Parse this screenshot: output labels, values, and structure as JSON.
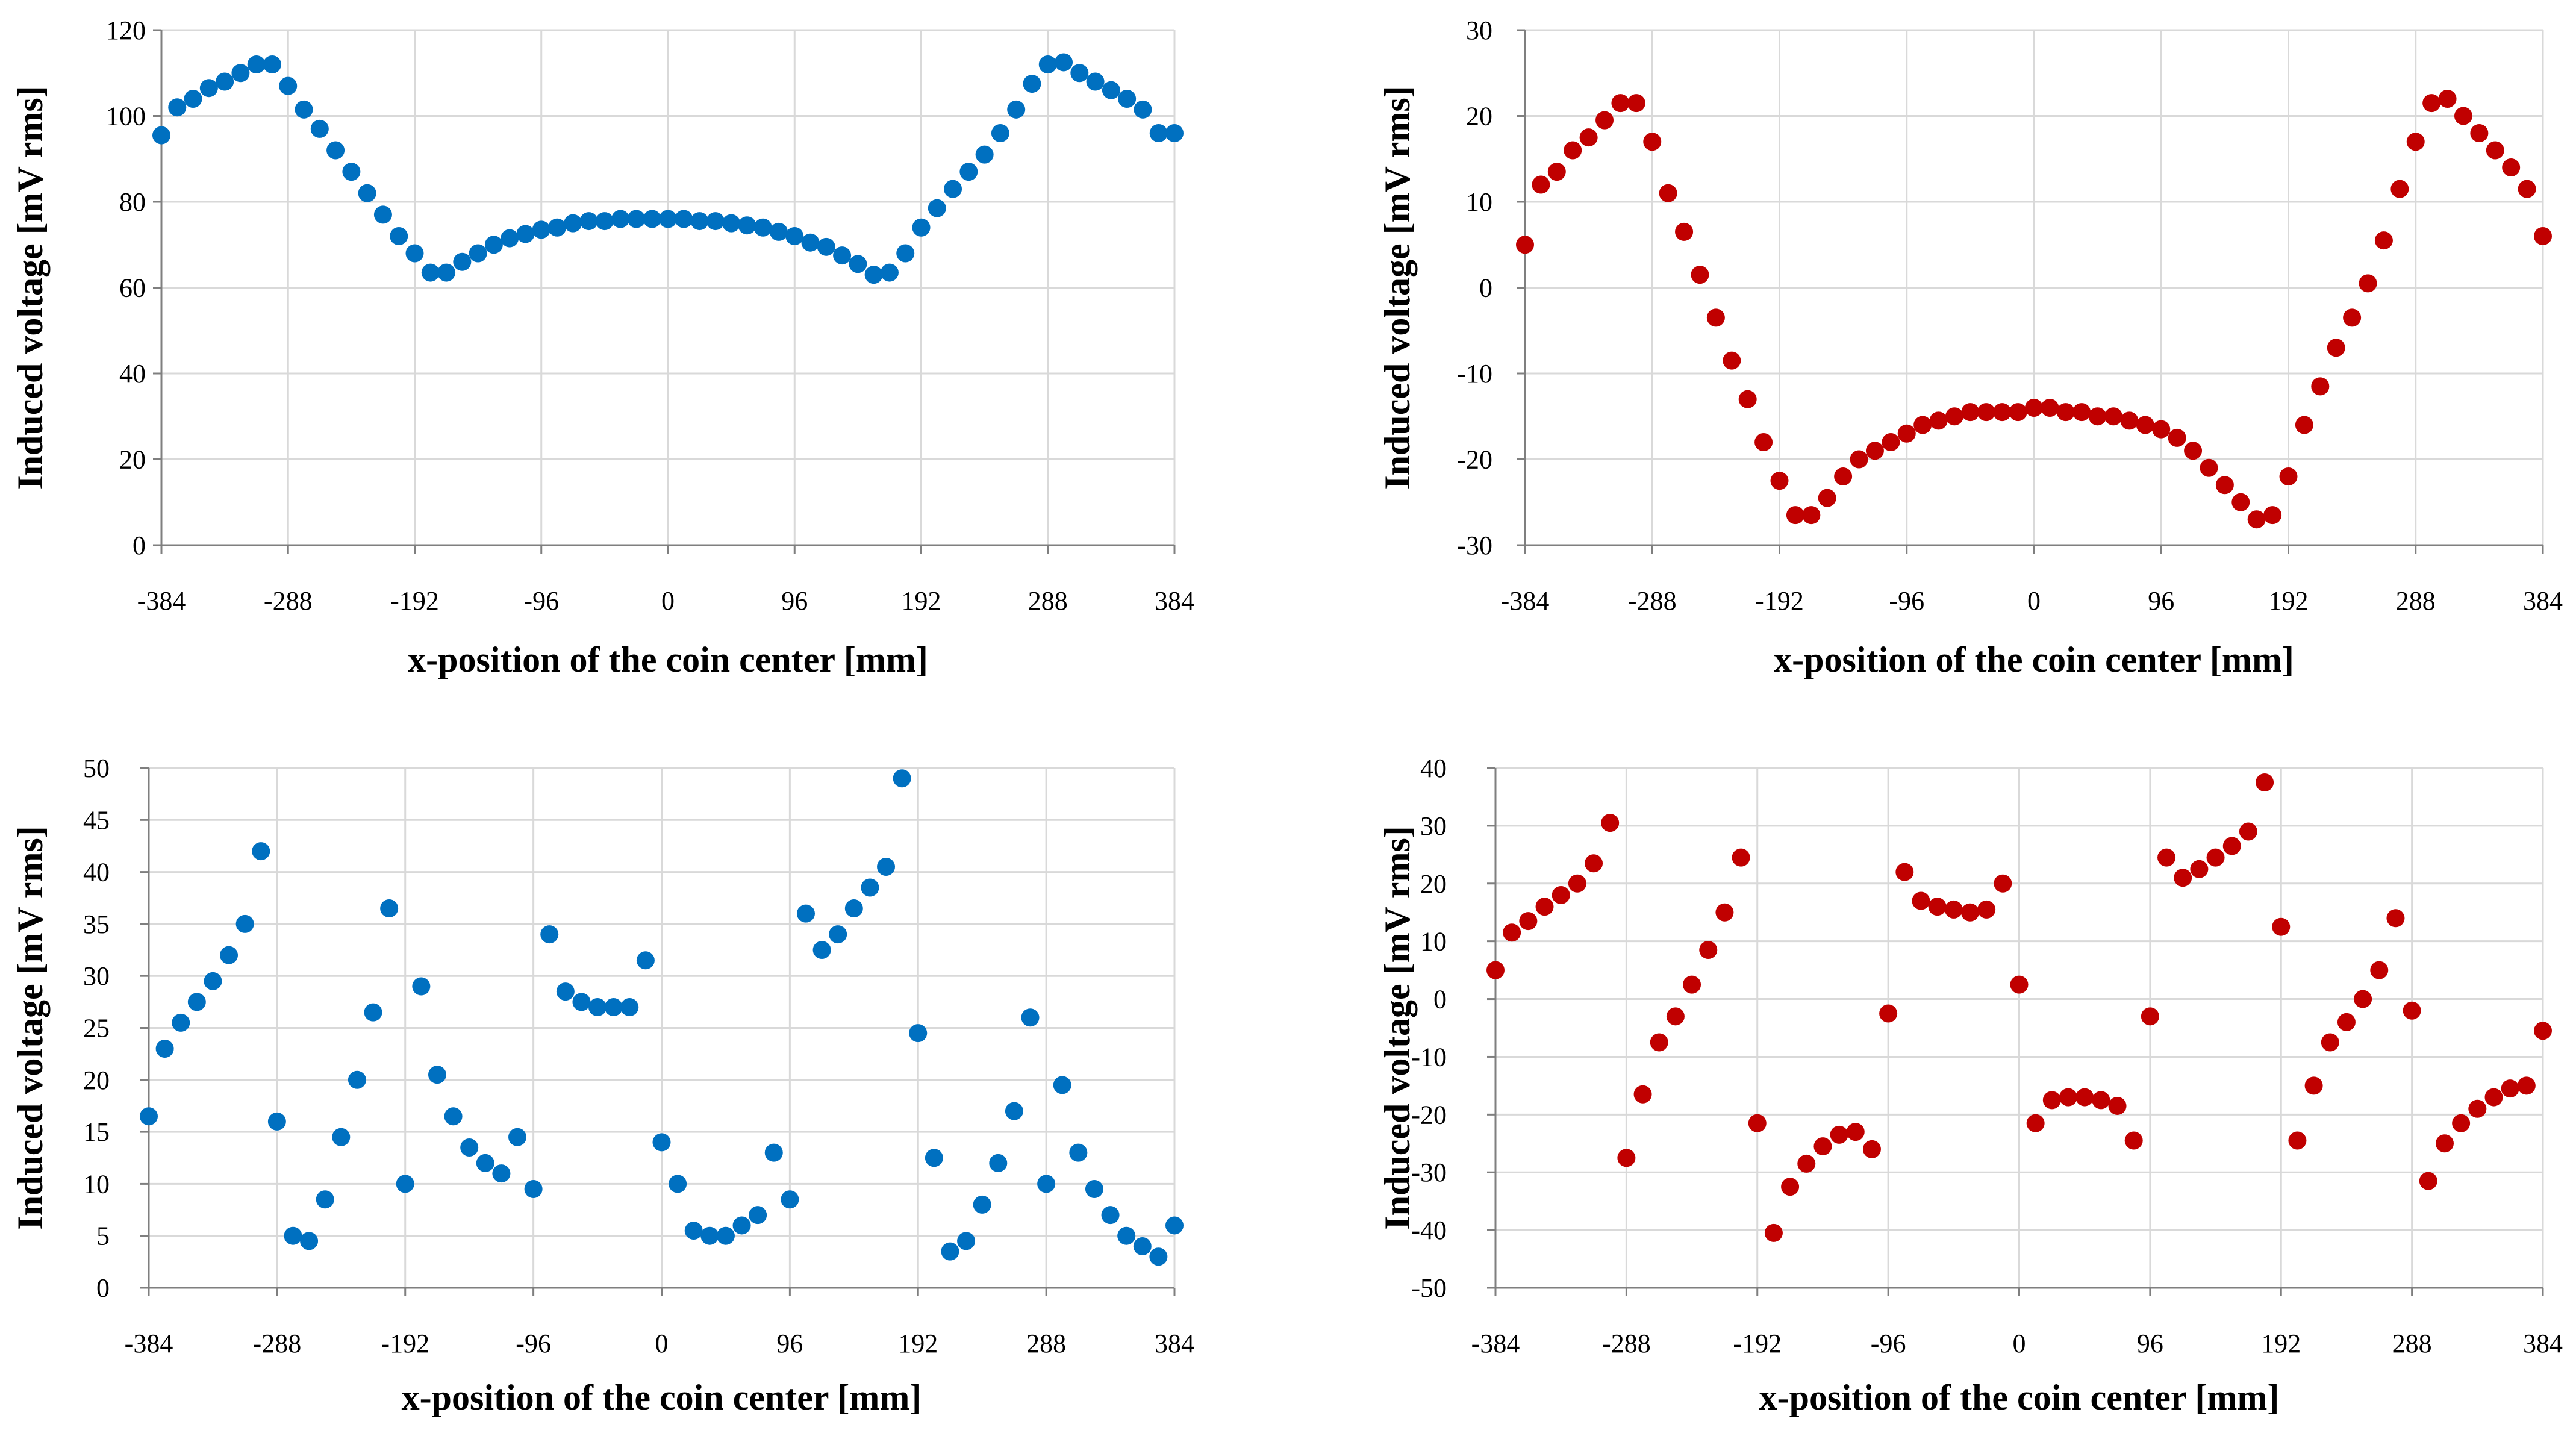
{
  "chart_data": [
    {
      "type": "scatter",
      "marker_color": "#0070C0",
      "xlabel": "x-position of the coin center [mm]",
      "ylabel": "Induced voltage [mV rms]",
      "xlim": [
        -384,
        384
      ],
      "ylim": [
        0,
        120
      ],
      "xticks": [
        -384,
        -288,
        -192,
        -96,
        0,
        96,
        192,
        288,
        384
      ],
      "yticks": [
        0,
        20,
        40,
        60,
        80,
        100,
        120
      ],
      "grid": true,
      "series": [
        {
          "name": "Top left",
          "x": [
            -384,
            -372,
            -360,
            -348,
            -336,
            -324,
            -312,
            -300,
            -288,
            -276,
            -264,
            -252,
            -240,
            -228,
            -216,
            -204,
            -192,
            -180,
            -168,
            -156,
            -144,
            -132,
            -120,
            -108,
            -96,
            -84,
            -72,
            -60,
            -48,
            -36,
            -24,
            -12,
            0,
            12,
            24,
            36,
            48,
            60,
            72,
            84,
            96,
            108,
            120,
            132,
            144,
            156,
            168,
            180,
            192,
            204,
            216,
            228,
            240,
            252,
            264,
            276,
            288,
            300,
            312,
            324,
            336,
            348,
            360,
            372,
            384
          ],
          "y": [
            95.5,
            102,
            104,
            106.5,
            108,
            110,
            112,
            112,
            107,
            101.5,
            97,
            92,
            87,
            82,
            77,
            72,
            68,
            63.5,
            63.5,
            66,
            68,
            70,
            71.5,
            72.5,
            73.5,
            74,
            75,
            75.5,
            75.5,
            76,
            76,
            76,
            76,
            76,
            75.5,
            75.5,
            75,
            74.5,
            74,
            73,
            72,
            70.5,
            69.5,
            67.5,
            65.5,
            63,
            63.5,
            68,
            74,
            78.5,
            83,
            87,
            91,
            96,
            101.5,
            107.5,
            112,
            112.5,
            110,
            108,
            106,
            104,
            101.5,
            96,
            96
          ]
        }
      ]
    },
    {
      "type": "scatter",
      "marker_color": "#C00000",
      "xlabel": "x-position of the coin center [mm]",
      "ylabel": "Induced voltage [mV rms]",
      "xlim": [
        -384,
        384
      ],
      "ylim": [
        -30,
        30
      ],
      "xticks": [
        -384,
        -288,
        -192,
        -96,
        0,
        96,
        192,
        288,
        384
      ],
      "yticks": [
        -30,
        -20,
        -10,
        0,
        10,
        20,
        30
      ],
      "grid": true,
      "series": [
        {
          "name": "Top right",
          "x": [
            -384,
            -372,
            -360,
            -348,
            -336,
            -324,
            -312,
            -300,
            -288,
            -276,
            -264,
            -252,
            -240,
            -228,
            -216,
            -204,
            -192,
            -180,
            -168,
            -156,
            -144,
            -132,
            -120,
            -108,
            -96,
            -84,
            -72,
            -60,
            -48,
            -36,
            -24,
            -12,
            0,
            12,
            24,
            36,
            48,
            60,
            72,
            84,
            96,
            108,
            120,
            132,
            144,
            156,
            168,
            180,
            192,
            204,
            216,
            228,
            240,
            252,
            264,
            276,
            288,
            300,
            312,
            324,
            336,
            348,
            360,
            372,
            384
          ],
          "y": [
            5,
            12,
            13.5,
            16,
            17.5,
            19.5,
            21.5,
            21.5,
            17,
            11,
            6.5,
            1.5,
            -3.5,
            -8.5,
            -13,
            -18,
            -22.5,
            -26.5,
            -26.5,
            -24.5,
            -22,
            -20,
            -19,
            -18,
            -17,
            -16,
            -15.5,
            -15,
            -14.5,
            -14.5,
            -14.5,
            -14.5,
            -14,
            -14,
            -14.5,
            -14.5,
            -15,
            -15,
            -15.5,
            -16,
            -16.5,
            -17.5,
            -19,
            -21,
            -23,
            -25,
            -27,
            -26.5,
            -22,
            -16,
            -11.5,
            -7,
            -3.5,
            0.5,
            5.5,
            11.5,
            17,
            21.5,
            22,
            20,
            18,
            16,
            14,
            11.5,
            6
          ]
        }
      ]
    },
    {
      "type": "scatter",
      "marker_color": "#0070C0",
      "xlabel": "x-position of the coin center [mm]",
      "ylabel": "Induced voltage [mV rms]",
      "xlim": [
        -384,
        384
      ],
      "ylim": [
        0,
        50
      ],
      "xticks": [
        -384,
        -288,
        -192,
        -96,
        0,
        96,
        192,
        288,
        384
      ],
      "yticks": [
        0,
        5,
        10,
        15,
        20,
        25,
        30,
        35,
        40,
        45,
        50
      ],
      "grid": true,
      "series": [
        {
          "name": "Bottom left",
          "x": [
            -384,
            -372,
            -360,
            -348,
            -336,
            -324,
            -312,
            -300,
            -288,
            -276,
            -264,
            -252,
            -240,
            -228,
            -216,
            -204,
            -192,
            -180,
            -168,
            -156,
            -144,
            -132,
            -120,
            -108,
            -96,
            -84,
            -72,
            -60,
            -48,
            -36,
            -24,
            -12,
            0,
            12,
            24,
            36,
            48,
            60,
            72,
            84,
            96,
            108,
            120,
            132,
            144,
            156,
            168,
            180,
            192,
            204,
            216,
            228,
            240,
            252,
            264,
            276,
            288,
            300,
            312,
            324,
            336,
            348,
            360,
            372,
            384
          ],
          "y": [
            16.5,
            23,
            25.5,
            27.5,
            29.5,
            32,
            35,
            42,
            16,
            5,
            4.5,
            8.5,
            14.5,
            20,
            26.5,
            36.5,
            10,
            29,
            20.5,
            16.5,
            13.5,
            12,
            11,
            14.5,
            9.5,
            34,
            28.5,
            27.5,
            27,
            27,
            27,
            31.5,
            14,
            10,
            5.5,
            5,
            5,
            6,
            7,
            13,
            8.5,
            36,
            32.5,
            34,
            36.5,
            38.5,
            40.5,
            49,
            24.5,
            12.5,
            3.5,
            4.5,
            8,
            12,
            17,
            26,
            10,
            19.5,
            13,
            9.5,
            7,
            5,
            4,
            3,
            6
          ]
        }
      ]
    },
    {
      "type": "scatter",
      "marker_color": "#C00000",
      "xlabel": "x-position of the coin center [mm]",
      "ylabel": "Induced voltage [mV rms]",
      "xlim": [
        -384,
        384
      ],
      "ylim": [
        -50,
        40
      ],
      "xticks": [
        -384,
        -288,
        -192,
        -96,
        0,
        96,
        192,
        288,
        384
      ],
      "yticks": [
        -50,
        -40,
        -30,
        -20,
        -10,
        0,
        10,
        20,
        30,
        40
      ],
      "grid": true,
      "series": [
        {
          "name": "Bottom right",
          "x": [
            -384,
            -372,
            -360,
            -348,
            -336,
            -324,
            -312,
            -300,
            -288,
            -276,
            -264,
            -252,
            -240,
            -228,
            -216,
            -204,
            -192,
            -180,
            -168,
            -156,
            -144,
            -132,
            -120,
            -108,
            -96,
            -84,
            -72,
            -60,
            -48,
            -36,
            -24,
            -12,
            0,
            12,
            24,
            36,
            48,
            60,
            72,
            84,
            96,
            108,
            120,
            132,
            144,
            156,
            168,
            180,
            192,
            204,
            216,
            228,
            240,
            252,
            264,
            276,
            288,
            300,
            312,
            324,
            336,
            348,
            360,
            372,
            384
          ],
          "y": [
            5,
            11.5,
            13.5,
            16,
            18,
            20,
            23.5,
            30.5,
            -27.5,
            -16.5,
            -7.5,
            -3,
            2.5,
            8.5,
            15,
            24.5,
            -21.5,
            -40.5,
            -32.5,
            -28.5,
            -25.5,
            -23.5,
            -23,
            -26,
            -2.5,
            22,
            17,
            16,
            15.5,
            15,
            15.5,
            20,
            2.5,
            -21.5,
            -17.5,
            -17,
            -17,
            -17.5,
            -18.5,
            -24.5,
            -3,
            24.5,
            21,
            22.5,
            24.5,
            26.5,
            29,
            37.5,
            12.5,
            -24.5,
            -15,
            -7.5,
            -4,
            0,
            5,
            14,
            -2,
            -31.5,
            -25,
            -21.5,
            -19,
            -17,
            -15.5,
            -15,
            -5.5
          ]
        }
      ]
    }
  ]
}
